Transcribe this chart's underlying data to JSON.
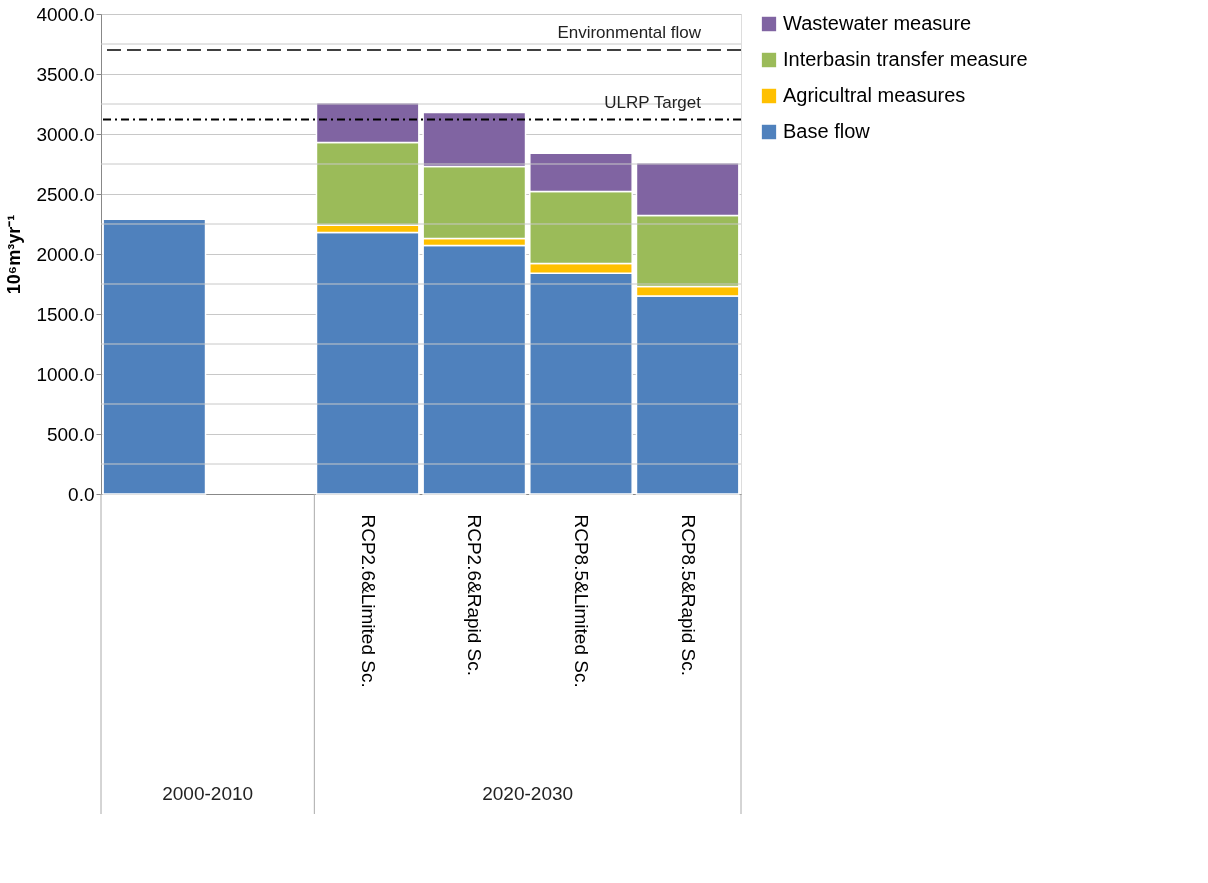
{
  "chart_data": {
    "type": "bar",
    "stacked": true,
    "categories": [
      null,
      null,
      "RCP2.6&Limited Sc.",
      "RCP2.6&Rapid Sc.",
      "RCP8.5&Limited Sc.",
      "RCP8.5&Rapid Sc."
    ],
    "ylabel": "10⁶m³yr⁻¹",
    "series": [
      {
        "name": "Base flow",
        "color": "#4f81bd",
        "values": [
          2290,
          null,
          2180,
          2070,
          1840,
          1650
        ]
      },
      {
        "name": "Agricultral measures",
        "color": "#ffc000",
        "values": [
          null,
          null,
          60,
          60,
          80,
          80
        ]
      },
      {
        "name": "Interbasin transfer measure",
        "color": "#9bbb59",
        "values": [
          null,
          null,
          690,
          600,
          600,
          590
        ]
      },
      {
        "name": "Wastewater measure",
        "color": "#8064a2",
        "values": [
          null,
          null,
          330,
          450,
          320,
          440
        ]
      }
    ],
    "ylim": [
      0,
      4000
    ],
    "yticks": [
      {
        "value": 0,
        "label": "0.0"
      },
      {
        "value": 250,
        "label": null
      },
      {
        "value": 500,
        "label": "500.0"
      },
      {
        "value": 750,
        "label": null
      },
      {
        "value": 1000,
        "label": "1000.0"
      },
      {
        "value": 1250,
        "label": null
      },
      {
        "value": 1500,
        "label": "1500.0"
      },
      {
        "value": 1750,
        "label": null
      },
      {
        "value": 2000,
        "label": "2000.0"
      },
      {
        "value": 2250,
        "label": null
      },
      {
        "value": 2500,
        "label": "2500.0"
      },
      {
        "value": 2750,
        "label": null
      },
      {
        "value": 3000,
        "label": "3000.0"
      },
      {
        "value": 3250,
        "label": null
      },
      {
        "value": 3500,
        "label": "3500.0"
      },
      {
        "value": 3750,
        "label": null
      },
      {
        "value": 4000,
        "label": "4000.0"
      }
    ],
    "ref_lines": [
      {
        "axis": "y",
        "value": 3700,
        "label": "Environmental flow",
        "line_style": "dashed",
        "color": "#404040"
      },
      {
        "axis": "y",
        "value": 3120,
        "label": "ULRP Target",
        "line_style": "dashdot",
        "color": "#000000"
      }
    ],
    "annotations": [
      "2000-2010",
      "2020-2030"
    ],
    "grid": "y",
    "legend": "right"
  }
}
